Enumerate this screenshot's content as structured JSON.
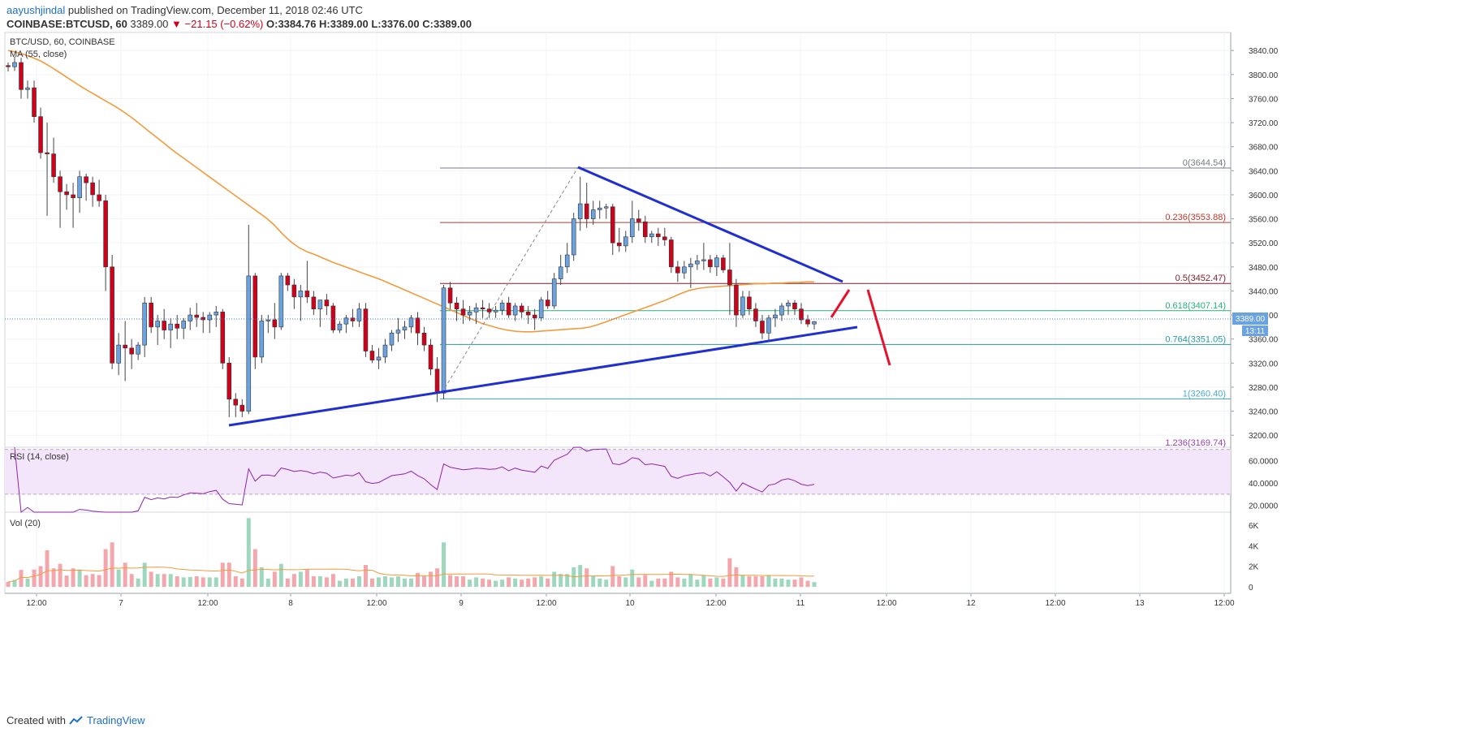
{
  "header": {
    "author": "aayushjindal",
    "published": "published on TradingView.com, December 11, 2018 02:46 UTC",
    "symbol": "COINBASE:BTCUSD, 60",
    "last": "3389.00",
    "change": "▼ −21.15 (−0.62%)",
    "ohlc": "O:3384.76 H:3389.00 L:3376.00 C:3389.00"
  },
  "footer": {
    "created_with": "Created with",
    "brand": "TradingView"
  },
  "chart_data": [
    {
      "type": "candlestick",
      "title": "BTC/USD, 60, COINBASE",
      "indicator": "MA (55, close)",
      "ylim": [
        3180,
        3870
      ],
      "y_ticks": [
        "3200.00",
        "3240.00",
        "3280.00",
        "3320.00",
        "3360.00",
        "3400.00",
        "3440.00",
        "3480.00",
        "3520.00",
        "3560.00",
        "3600.00",
        "3640.00",
        "3680.00",
        "3720.00",
        "3760.00",
        "3800.00",
        "3840.00"
      ],
      "x_ticks": [
        "12:00",
        "7",
        "12:00",
        "8",
        "12:00",
        "9",
        "12:00",
        "10",
        "12:00",
        "11",
        "12:00",
        "12",
        "12:00",
        "13",
        "12:00"
      ],
      "last_price_label": "3389.00",
      "countdown_label": "13:11",
      "fib_levels": [
        {
          "label": "0(3644.54)",
          "price": 3644.54,
          "color": "#787b86"
        },
        {
          "label": "0.236(3553.88)",
          "price": 3553.88,
          "color": "#c0392b"
        },
        {
          "label": "0.5(3452.47)",
          "price": 3452.47,
          "color": "#7a1f2b"
        },
        {
          "label": "0.618(3407.14)",
          "price": 3407.14,
          "color": "#2ab07a"
        },
        {
          "label": "0.764(3351.05)",
          "price": 3351.05,
          "color": "#2a9aa0"
        },
        {
          "label": "1(3260.40)",
          "price": 3260.4,
          "color": "#45a9d8"
        },
        {
          "label": "1.236(3169.74)",
          "price": 3169.74,
          "color": "#9b3fb5"
        }
      ],
      "candles": [
        [
          3815,
          3820,
          3805,
          3813
        ],
        [
          3813,
          3830,
          3806,
          3820
        ],
        [
          3820,
          3828,
          3760,
          3775
        ],
        [
          3775,
          3790,
          3760,
          3778
        ],
        [
          3778,
          3790,
          3720,
          3730
        ],
        [
          3730,
          3745,
          3660,
          3670
        ],
        [
          3670,
          3720,
          3565,
          3668
        ],
        [
          3668,
          3695,
          3620,
          3630
        ],
        [
          3630,
          3640,
          3545,
          3605
        ],
        [
          3605,
          3618,
          3575,
          3600
        ],
        [
          3600,
          3620,
          3545,
          3595
        ],
        [
          3595,
          3640,
          3570,
          3630
        ],
        [
          3630,
          3635,
          3590,
          3620
        ],
        [
          3620,
          3630,
          3580,
          3600
        ],
        [
          3600,
          3625,
          3580,
          3590
        ],
        [
          3590,
          3600,
          3440,
          3480
        ],
        [
          3480,
          3500,
          3310,
          3320
        ],
        [
          3320,
          3370,
          3300,
          3350
        ],
        [
          3350,
          3390,
          3290,
          3345
        ],
        [
          3345,
          3360,
          3310,
          3335
        ],
        [
          3335,
          3355,
          3325,
          3350
        ],
        [
          3350,
          3430,
          3330,
          3420
        ],
        [
          3420,
          3430,
          3370,
          3380
        ],
        [
          3380,
          3400,
          3350,
          3390
        ],
        [
          3390,
          3410,
          3360,
          3375
        ],
        [
          3375,
          3395,
          3345,
          3385
        ],
        [
          3385,
          3400,
          3360,
          3378
        ],
        [
          3378,
          3395,
          3360,
          3390
        ],
        [
          3390,
          3412,
          3375,
          3400
        ],
        [
          3400,
          3420,
          3380,
          3396
        ],
        [
          3396,
          3405,
          3370,
          3392
        ],
        [
          3392,
          3405,
          3370,
          3400
        ],
        [
          3400,
          3415,
          3380,
          3405
        ],
        [
          3405,
          3410,
          3310,
          3320
        ],
        [
          3320,
          3330,
          3230,
          3260
        ],
        [
          3260,
          3270,
          3230,
          3250
        ],
        [
          3250,
          3260,
          3230,
          3240
        ],
        [
          3240,
          3550,
          3235,
          3465
        ],
        [
          3465,
          3470,
          3310,
          3330
        ],
        [
          3330,
          3400,
          3320,
          3390
        ],
        [
          3390,
          3400,
          3370,
          3392
        ],
        [
          3392,
          3420,
          3360,
          3380
        ],
        [
          3380,
          3470,
          3375,
          3465
        ],
        [
          3465,
          3470,
          3440,
          3450
        ],
        [
          3450,
          3460,
          3410,
          3430
        ],
        [
          3430,
          3450,
          3390,
          3440
        ],
        [
          3440,
          3490,
          3420,
          3430
        ],
        [
          3430,
          3440,
          3400,
          3410
        ],
        [
          3410,
          3420,
          3380,
          3425
        ],
        [
          3425,
          3435,
          3400,
          3415
        ],
        [
          3415,
          3420,
          3370,
          3375
        ],
        [
          3375,
          3390,
          3370,
          3385
        ],
        [
          3385,
          3400,
          3370,
          3395
        ],
        [
          3395,
          3410,
          3380,
          3390
        ],
        [
          3390,
          3420,
          3380,
          3410
        ],
        [
          3410,
          3420,
          3330,
          3340
        ],
        [
          3340,
          3350,
          3320,
          3325
        ],
        [
          3325,
          3345,
          3310,
          3330
        ],
        [
          3330,
          3360,
          3320,
          3350
        ],
        [
          3350,
          3375,
          3340,
          3370
        ],
        [
          3370,
          3395,
          3355,
          3375
        ],
        [
          3375,
          3390,
          3360,
          3380
        ],
        [
          3380,
          3400,
          3370,
          3395
        ],
        [
          3395,
          3405,
          3350,
          3370
        ],
        [
          3370,
          3380,
          3340,
          3350
        ],
        [
          3350,
          3360,
          3300,
          3310
        ],
        [
          3310,
          3330,
          3255,
          3270
        ],
        [
          3270,
          3450,
          3260,
          3445
        ],
        [
          3445,
          3455,
          3410,
          3420
        ],
        [
          3420,
          3430,
          3390,
          3410
        ],
        [
          3410,
          3425,
          3385,
          3400
        ],
        [
          3400,
          3415,
          3390,
          3405
        ],
        [
          3405,
          3420,
          3385,
          3412
        ],
        [
          3412,
          3425,
          3395,
          3410
        ],
        [
          3410,
          3420,
          3395,
          3405
        ],
        [
          3405,
          3415,
          3395,
          3408
        ],
        [
          3408,
          3425,
          3400,
          3420
        ],
        [
          3420,
          3430,
          3395,
          3400
        ],
        [
          3400,
          3420,
          3390,
          3415
        ],
        [
          3415,
          3420,
          3395,
          3405
        ],
        [
          3405,
          3415,
          3385,
          3400
        ],
        [
          3400,
          3410,
          3375,
          3395
        ],
        [
          3395,
          3430,
          3390,
          3425
        ],
        [
          3425,
          3440,
          3410,
          3415
        ],
        [
          3415,
          3470,
          3410,
          3460
        ],
        [
          3460,
          3500,
          3450,
          3480
        ],
        [
          3480,
          3520,
          3470,
          3500
        ],
        [
          3500,
          3570,
          3490,
          3560
        ],
        [
          3560,
          3630,
          3540,
          3585
        ],
        [
          3585,
          3620,
          3545,
          3560
        ],
        [
          3560,
          3590,
          3550,
          3575
        ],
        [
          3575,
          3590,
          3560,
          3578
        ],
        [
          3578,
          3585,
          3560,
          3580
        ],
        [
          3580,
          3585,
          3500,
          3520
        ],
        [
          3520,
          3545,
          3505,
          3515
        ],
        [
          3515,
          3540,
          3505,
          3530
        ],
        [
          3530,
          3590,
          3520,
          3560
        ],
        [
          3560,
          3575,
          3540,
          3555
        ],
        [
          3555,
          3565,
          3520,
          3530
        ],
        [
          3530,
          3540,
          3520,
          3535
        ],
        [
          3535,
          3545,
          3515,
          3530
        ],
        [
          3530,
          3545,
          3515,
          3525
        ],
        [
          3525,
          3530,
          3470,
          3480
        ],
        [
          3480,
          3490,
          3455,
          3470
        ],
        [
          3470,
          3490,
          3460,
          3480
        ],
        [
          3480,
          3495,
          3445,
          3485
        ],
        [
          3485,
          3500,
          3475,
          3490
        ],
        [
          3490,
          3520,
          3475,
          3492
        ],
        [
          3492,
          3500,
          3470,
          3480
        ],
        [
          3480,
          3500,
          3465,
          3495
        ],
        [
          3495,
          3500,
          3470,
          3475
        ],
        [
          3475,
          3520,
          3400,
          3450
        ],
        [
          3450,
          3460,
          3380,
          3400
        ],
        [
          3400,
          3440,
          3395,
          3430
        ],
        [
          3430,
          3440,
          3400,
          3410
        ],
        [
          3410,
          3420,
          3380,
          3390
        ],
        [
          3390,
          3400,
          3360,
          3370
        ],
        [
          3370,
          3400,
          3355,
          3395
        ],
        [
          3395,
          3410,
          3380,
          3400
        ],
        [
          3400,
          3420,
          3390,
          3415
        ],
        [
          3415,
          3425,
          3400,
          3420
        ],
        [
          3420,
          3425,
          3400,
          3410
        ],
        [
          3410,
          3420,
          3385,
          3392
        ],
        [
          3392,
          3400,
          3380,
          3385
        ],
        [
          3385,
          3390,
          3376,
          3389
        ]
      ],
      "ma": [
        3840,
        3837,
        3833,
        3828,
        3822,
        3814,
        3805,
        3796,
        3787,
        3778,
        3770,
        3762,
        3754,
        3746,
        3737,
        3727,
        3716,
        3705,
        3694,
        3683,
        3672,
        3662,
        3652,
        3642,
        3632,
        3622,
        3612,
        3602,
        3592,
        3582,
        3572,
        3562,
        3550,
        3535,
        3522,
        3512,
        3505,
        3500,
        3494,
        3488,
        3483,
        3478,
        3473,
        3468,
        3463,
        3458,
        3452,
        3446,
        3440,
        3434,
        3428,
        3422,
        3416,
        3410,
        3404,
        3398,
        3392,
        3386,
        3382,
        3378,
        3375,
        3373,
        3372,
        3372,
        3373,
        3374,
        3375,
        3376,
        3377,
        3378,
        3380,
        3384,
        3389,
        3394,
        3399,
        3404,
        3409,
        3414,
        3419,
        3424,
        3430,
        3436,
        3441,
        3444,
        3446,
        3447,
        3448,
        3449,
        3450,
        3451,
        3452,
        3452,
        3453,
        3453,
        3454,
        3454,
        3455,
        3455
      ],
      "ma_start_index": 0
    },
    {
      "type": "line",
      "title": "RSI (14, close)",
      "ylim": [
        14,
        72
      ],
      "y_ticks": [
        "20.0000",
        "40.0000",
        "60.0000"
      ],
      "bands": [
        30,
        70
      ]
    },
    {
      "type": "bar",
      "title": "Vol (20)",
      "ylim": [
        0,
        6800
      ],
      "y_ticks": [
        "0",
        "2K",
        "4K",
        "6K"
      ]
    }
  ],
  "colors": {
    "up": "#6ba3e0",
    "down": "#d0021b",
    "ma": "#f39b3c",
    "trend": "#1f2fd1",
    "arrow": "#e8102a",
    "rsi": "#8e24aa",
    "vol_up": "#9dd8be",
    "vol_down": "#f3a6ab"
  }
}
